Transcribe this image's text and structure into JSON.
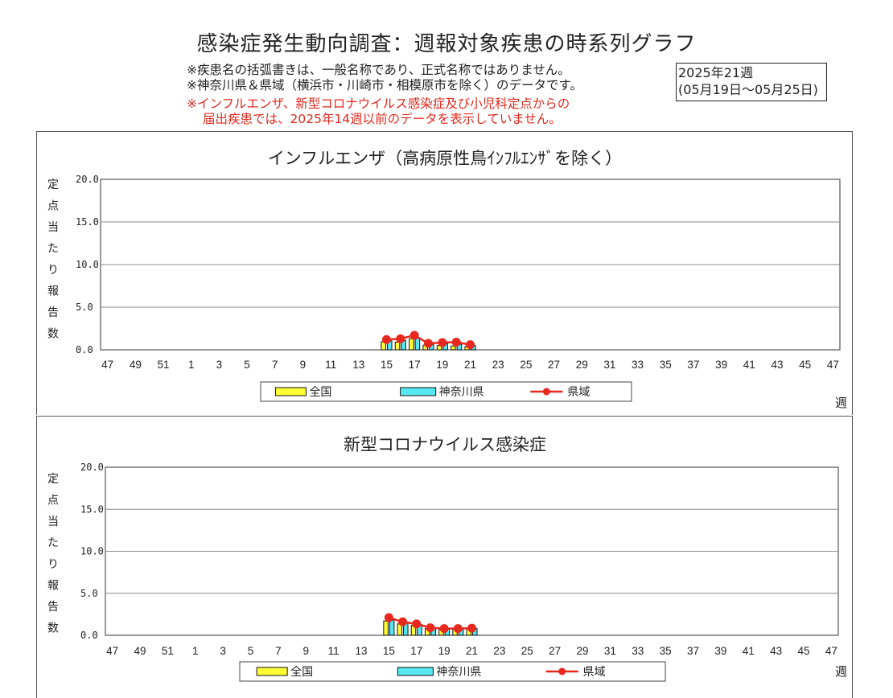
{
  "page": {
    "title": "感染症発生動向調査：週報対象疾患の時系列グラフ",
    "notes": [
      "※疾患名の括弧書きは、一般名称であり、正式名称ではありません。",
      "※神奈川県＆県域（横浜市・川崎市・相模原市を除く）のデータです。"
    ],
    "red_notes": [
      "※インフルエンザ、新型コロナウイルス感染症及び小児科定点からの",
      "届出疾患では、2025年14週以前のデータを表示していません。"
    ],
    "week_box": [
      "2025年21週",
      "(05月19日～05月25日)"
    ]
  },
  "colors": {
    "national": "#ffff33",
    "kanagawa": "#55e8f0",
    "prefecture_line": "#e8281e",
    "gridline": "#888888"
  },
  "chart_data": [
    {
      "type": "bar",
      "title": "インフルエンザ（高病原性鳥ｲﾝﾌﾙｴﾝｻﾞを除く）",
      "ylabel": "定点当たり報告数",
      "xlabel": "週",
      "ylim": [
        0,
        20
      ],
      "yticks": [
        "20.0",
        "15.0",
        "10.0",
        "5.0",
        "0.0"
      ],
      "x_ticks": [
        "47",
        "49",
        "51",
        "1",
        "3",
        "5",
        "7",
        "9",
        "11",
        "13",
        "15",
        "17",
        "19",
        "21",
        "23",
        "25",
        "27",
        "29",
        "31",
        "33",
        "35",
        "37",
        "39",
        "41",
        "43",
        "45",
        "47"
      ],
      "x": [
        15,
        16,
        17,
        18,
        19,
        20,
        21
      ],
      "legend_position": "bottom",
      "series": [
        {
          "name": "全国",
          "kind": "bar",
          "values": [
            0.95,
            0.9,
            1.3,
            0.55,
            0.5,
            0.45,
            0.4
          ]
        },
        {
          "name": "神奈川県",
          "kind": "bar",
          "values": [
            1.05,
            1.1,
            1.4,
            0.6,
            0.7,
            0.65,
            0.5
          ]
        },
        {
          "name": "県域",
          "kind": "line",
          "values": [
            1.2,
            1.3,
            1.7,
            0.75,
            0.85,
            0.9,
            0.6
          ]
        }
      ]
    },
    {
      "type": "bar",
      "title": "新型コロナウイルス感染症",
      "ylabel": "定点当たり報告数",
      "xlabel": "週",
      "ylim": [
        0,
        20
      ],
      "yticks": [
        "20.0",
        "15.0",
        "10.0",
        "5.0",
        "0.0"
      ],
      "x_ticks": [
        "47",
        "49",
        "51",
        "1",
        "3",
        "5",
        "7",
        "9",
        "11",
        "13",
        "15",
        "17",
        "19",
        "21",
        "23",
        "25",
        "27",
        "29",
        "31",
        "33",
        "35",
        "37",
        "39",
        "41",
        "43",
        "45",
        "47"
      ],
      "x": [
        15,
        16,
        17,
        18,
        19,
        20,
        21
      ],
      "legend_position": "bottom",
      "series": [
        {
          "name": "全国",
          "kind": "bar",
          "values": [
            1.7,
            1.35,
            1.2,
            0.8,
            0.7,
            0.7,
            0.75
          ]
        },
        {
          "name": "神奈川県",
          "kind": "bar",
          "values": [
            1.8,
            1.45,
            1.3,
            0.85,
            0.75,
            0.75,
            0.8
          ]
        },
        {
          "name": "県域",
          "kind": "line",
          "values": [
            2.1,
            1.6,
            1.35,
            0.9,
            0.8,
            0.8,
            0.85
          ]
        }
      ]
    }
  ]
}
